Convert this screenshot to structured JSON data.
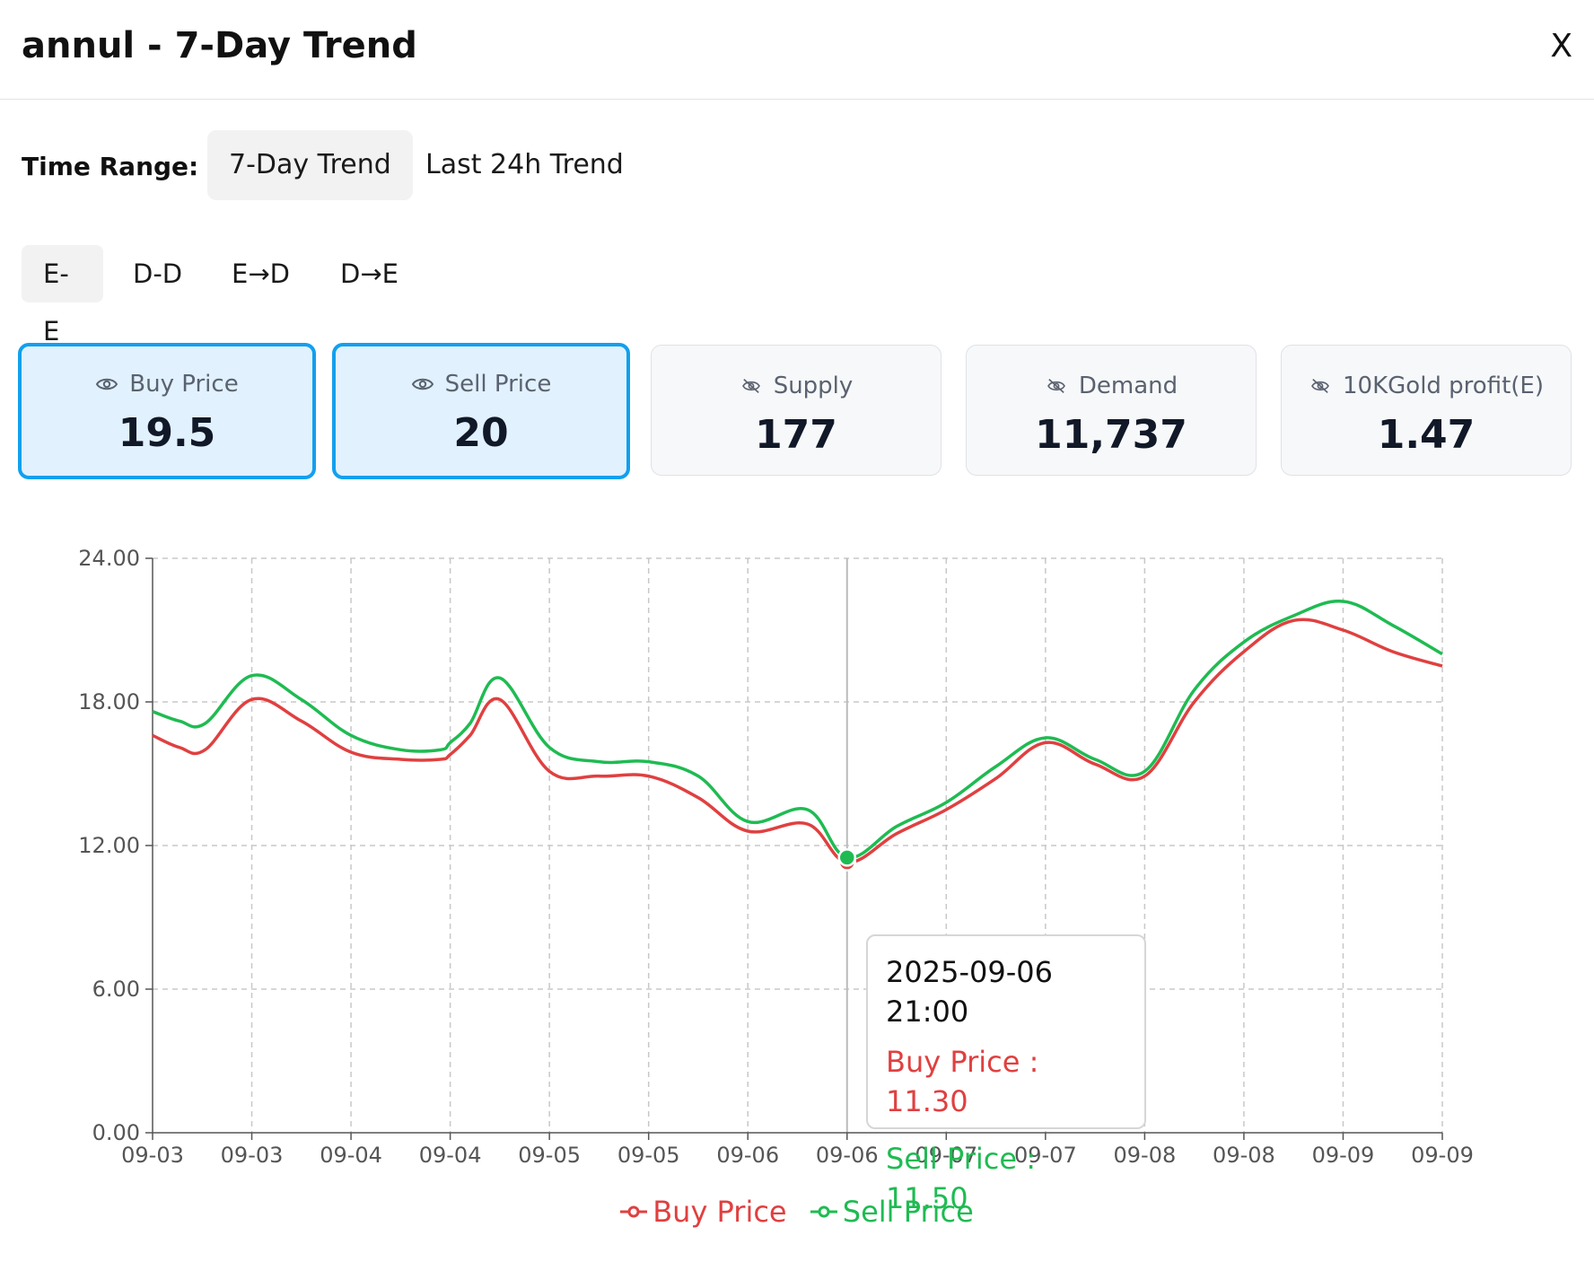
{
  "header": {
    "title": "annul - 7-Day Trend",
    "close_label": "X"
  },
  "time_range": {
    "label": "Time Range:",
    "tabs": [
      {
        "label": "7-Day Trend",
        "active": true
      },
      {
        "label": "Last 24h Trend",
        "active": false
      }
    ]
  },
  "modes": [
    {
      "label": "E-E",
      "active": true
    },
    {
      "label": "D-D",
      "active": false
    },
    {
      "label": "E→D",
      "active": false
    },
    {
      "label": "D→E",
      "active": false
    }
  ],
  "metrics": [
    {
      "label": "Buy Price",
      "value": "19.5",
      "visible": true
    },
    {
      "label": "Sell Price",
      "value": "20",
      "visible": true
    },
    {
      "label": "Supply",
      "value": "177",
      "visible": false
    },
    {
      "label": "Demand",
      "value": "11,737",
      "visible": false
    },
    {
      "label": "10KGold profit(E)",
      "value": "1.47",
      "visible": false
    }
  ],
  "tooltip": {
    "time": "2025-09-06 21:00",
    "buy": "Buy Price : 11.30",
    "sell": "Sell Price : 11.50"
  },
  "legend": {
    "buy": "Buy Price",
    "sell": "Sell Price"
  },
  "colors": {
    "buy": "#e04040",
    "sell": "#1fbb52",
    "accent": "#12a0ee"
  },
  "chart_data": {
    "type": "line",
    "title": "",
    "xlabel": "",
    "ylabel": "",
    "ylim": [
      0,
      24
    ],
    "y_ticks": [
      "0.00",
      "6.00",
      "12.00",
      "18.00",
      "24.00"
    ],
    "x_tick_labels": [
      "09-03",
      "09-03",
      "09-04",
      "09-04",
      "09-05",
      "09-05",
      "09-06",
      "09-06",
      "09-07",
      "09-07",
      "09-08",
      "09-08",
      "09-09",
      "09-09"
    ],
    "grid": true,
    "legend_position": "bottom",
    "highlight_index": 7,
    "series": [
      {
        "name": "Buy Price",
        "color": "#e04040",
        "x": [
          0,
          0.27,
          0.53,
          1,
          1.5,
          2,
          2.5,
          2.9,
          3,
          3.2,
          3.5,
          4,
          4.5,
          5,
          5.5,
          6,
          6.6,
          7,
          7.5,
          8,
          8.5,
          9,
          9.5,
          10,
          10.5,
          11,
          11.5,
          12,
          12.5,
          13
        ],
        "values": [
          16.6,
          16.1,
          16.0,
          18.1,
          17.2,
          15.9,
          15.6,
          15.6,
          15.8,
          16.6,
          18.1,
          15.1,
          14.9,
          14.9,
          14.0,
          12.6,
          12.9,
          11.3,
          12.5,
          13.5,
          14.8,
          16.3,
          15.4,
          14.9,
          18.0,
          20.1,
          21.4,
          21.0,
          20.1,
          19.5
        ]
      },
      {
        "name": "Sell Price",
        "color": "#1fbb52",
        "x": [
          0,
          0.27,
          0.53,
          1,
          1.5,
          2,
          2.5,
          2.9,
          3,
          3.2,
          3.5,
          4,
          4.5,
          5,
          5.5,
          6,
          6.6,
          7,
          7.5,
          8,
          8.5,
          9,
          9.5,
          10,
          10.5,
          11,
          11.5,
          12,
          12.5,
          13
        ],
        "values": [
          17.6,
          17.2,
          17.1,
          19.1,
          18.1,
          16.6,
          16.0,
          16.0,
          16.3,
          17.1,
          19.0,
          16.1,
          15.5,
          15.5,
          14.9,
          13.0,
          13.5,
          11.5,
          12.8,
          13.8,
          15.3,
          16.5,
          15.6,
          15.1,
          18.5,
          20.5,
          21.6,
          22.2,
          21.2,
          20.0
        ]
      }
    ]
  }
}
